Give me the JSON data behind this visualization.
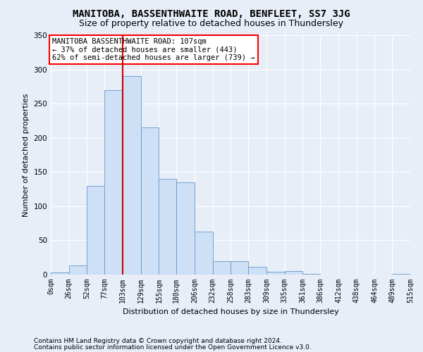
{
  "title": "MANITOBA, BASSENTHWAITE ROAD, BENFLEET, SS7 3JG",
  "subtitle": "Size of property relative to detached houses in Thundersley",
  "xlabel": "Distribution of detached houses by size in Thundersley",
  "ylabel": "Number of detached properties",
  "footnote1": "Contains HM Land Registry data © Crown copyright and database right 2024.",
  "footnote2": "Contains public sector information licensed under the Open Government Licence v3.0.",
  "annotation_line1": "MANITOBA BASSENTHWAITE ROAD: 107sqm",
  "annotation_line2": "← 37% of detached houses are smaller (443)",
  "annotation_line3": "62% of semi-detached houses are larger (739) →",
  "bar_color": "#cde0f5",
  "bar_edge_color": "#6699cc",
  "reference_line_x": 103,
  "reference_line_color": "#cc0000",
  "bin_edges": [
    0,
    26,
    52,
    77,
    103,
    129,
    155,
    180,
    206,
    232,
    258,
    283,
    309,
    335,
    361,
    386,
    412,
    438,
    464,
    489,
    515
  ],
  "bar_heights": [
    3,
    13,
    130,
    270,
    290,
    215,
    140,
    135,
    63,
    20,
    20,
    11,
    4,
    5,
    1,
    0,
    0,
    0,
    0,
    1
  ],
  "ylim": [
    0,
    350
  ],
  "yticks": [
    0,
    50,
    100,
    150,
    200,
    250,
    300,
    350
  ],
  "background_color": "#e8eef8",
  "plot_background_color": "#e8eef8",
  "grid_color": "#ffffff",
  "title_fontsize": 10,
  "subtitle_fontsize": 9,
  "annotation_fontsize": 7.5,
  "ylabel_fontsize": 8,
  "xlabel_fontsize": 8,
  "tick_fontsize": 7,
  "footnote_fontsize": 6.5
}
